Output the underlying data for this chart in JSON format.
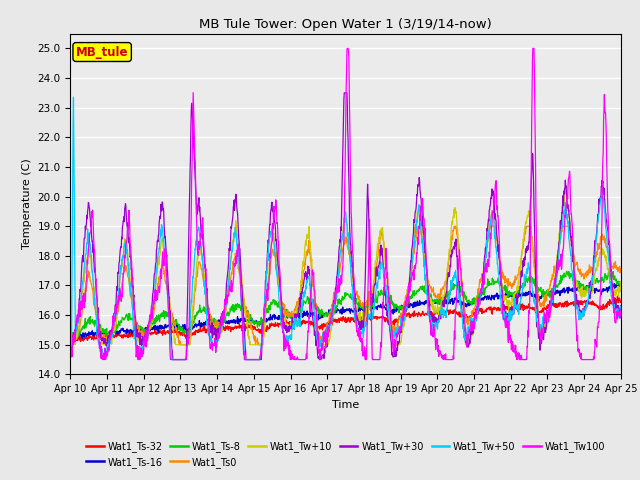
{
  "title": "MB Tule Tower: Open Water 1 (3/19/14-now)",
  "xlabel": "Time",
  "ylabel": "Temperature (C)",
  "ylim": [
    14.0,
    25.5
  ],
  "yticks": [
    14.0,
    15.0,
    16.0,
    17.0,
    18.0,
    19.0,
    20.0,
    21.0,
    22.0,
    23.0,
    24.0,
    25.0
  ],
  "x_tick_labels": [
    "Apr 10",
    "Apr 11",
    "Apr 12",
    "Apr 13",
    "Apr 14",
    "Apr 15",
    "Apr 16",
    "Apr 17",
    "Apr 18",
    "Apr 19",
    "Apr 20",
    "Apr 21",
    "Apr 22",
    "Apr 23",
    "Apr 24",
    "Apr 25"
  ],
  "legend_label": "MB_tule",
  "legend_box_color": "#ffff00",
  "legend_text_color": "#cc0000",
  "series": [
    {
      "name": "Wat1_Ts-32",
      "color": "#ff0000"
    },
    {
      "name": "Wat1_Ts-16",
      "color": "#0000cc"
    },
    {
      "name": "Wat1_Ts-8",
      "color": "#00cc00"
    },
    {
      "name": "Wat1_Ts0",
      "color": "#ff8800"
    },
    {
      "name": "Wat1_Tw+10",
      "color": "#cccc00"
    },
    {
      "name": "Wat1_Tw+30",
      "color": "#9900cc"
    },
    {
      "name": "Wat1_Tw+50",
      "color": "#00ccff"
    },
    {
      "name": "Wat1_Tw100",
      "color": "#ff00ff"
    }
  ],
  "background_color": "#e8e8e8",
  "plot_bg_color": "#ebebeb"
}
